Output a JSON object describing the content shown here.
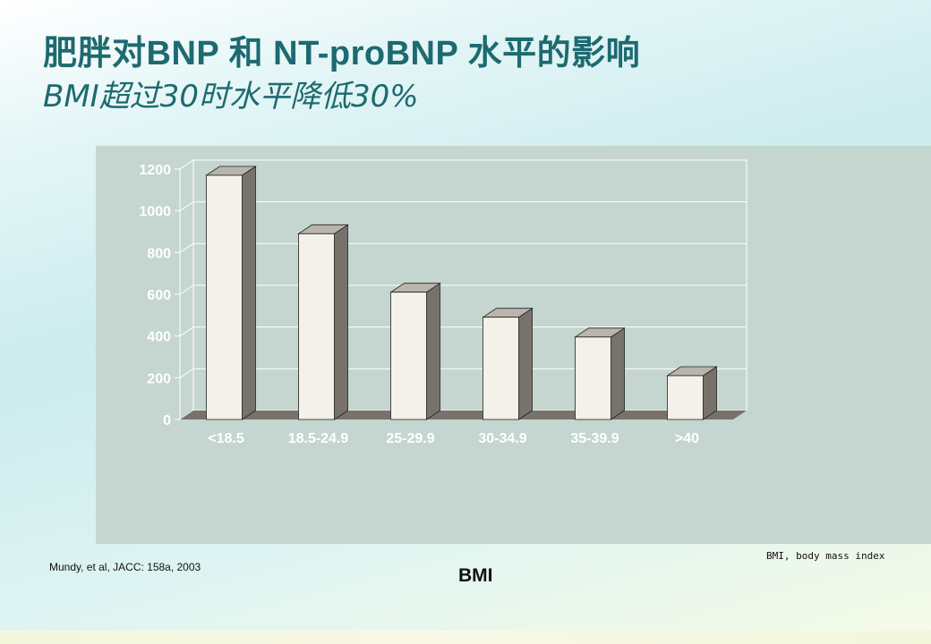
{
  "slide": {
    "title": "肥胖对BNP 和 NT-proBNP 水平的影响",
    "subtitle": "BMI超过30时水平降低30%",
    "citation": "Mundy, et al, JACC: 158a, 2003",
    "footnote": "BMI, body mass index",
    "x_axis_title": "BMI"
  },
  "chart_data": {
    "type": "bar",
    "style": "3d",
    "categories": [
      "<18.5",
      "18.5-24.9",
      "25-29.9",
      "30-34.9",
      "35-39.9",
      ">40"
    ],
    "values": [
      1170,
      890,
      610,
      490,
      395,
      210
    ],
    "xlabel": "BMI",
    "ylabel": "",
    "ylim": [
      0,
      1200
    ],
    "yticks": [
      0,
      200,
      400,
      600,
      800,
      1000,
      1200
    ],
    "grid": true,
    "legend": "none",
    "colors": {
      "bar_front": "#f3f1ea",
      "bar_side": "#77726c",
      "bar_top": "#b9b5ac",
      "floor": "#77726c",
      "grid": "#ffffff",
      "tick_label": "#ffffff",
      "panel": "#c4d6cf"
    }
  }
}
